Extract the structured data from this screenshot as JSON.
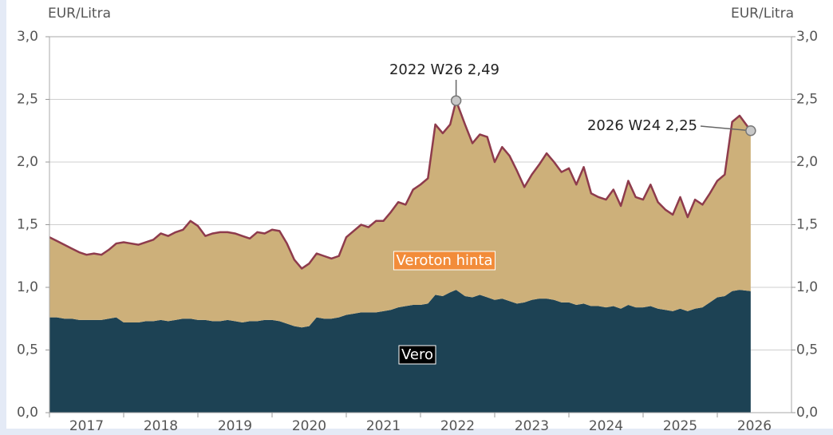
{
  "chart_data": {
    "type": "stacked_area",
    "y_axis_label": "EUR/Litra",
    "y2_axis_label": "EUR/Litra",
    "x": [
      2017.0,
      2017.1,
      2017.2,
      2017.3,
      2017.4,
      2017.5,
      2017.6,
      2017.7,
      2017.8,
      2017.9,
      2018.0,
      2018.1,
      2018.2,
      2018.3,
      2018.4,
      2018.5,
      2018.6,
      2018.7,
      2018.8,
      2018.9,
      2019.0,
      2019.1,
      2019.2,
      2019.3,
      2019.4,
      2019.5,
      2019.6,
      2019.7,
      2019.8,
      2019.9,
      2020.0,
      2020.1,
      2020.2,
      2020.3,
      2020.4,
      2020.5,
      2020.6,
      2020.7,
      2020.8,
      2020.9,
      2021.0,
      2021.1,
      2021.2,
      2021.3,
      2021.4,
      2021.5,
      2021.6,
      2021.7,
      2021.8,
      2021.9,
      2022.0,
      2022.1,
      2022.2,
      2022.3,
      2022.4,
      2022.48,
      2022.6,
      2022.7,
      2022.8,
      2022.9,
      2023.0,
      2023.1,
      2023.2,
      2023.3,
      2023.4,
      2023.5,
      2023.6,
      2023.7,
      2023.8,
      2023.9,
      2024.0,
      2024.1,
      2024.2,
      2024.3,
      2024.4,
      2024.5,
      2024.6,
      2024.7,
      2024.8,
      2024.9,
      2025.0,
      2025.1,
      2025.2,
      2025.3,
      2025.4,
      2025.5,
      2025.6,
      2025.7,
      2025.8,
      2025.9,
      2026.0,
      2026.1,
      2026.2,
      2026.3,
      2026.45
    ],
    "series": [
      {
        "name": "Vero",
        "color": "#1d4254",
        "label_color": "#000000",
        "values": [
          0.76,
          0.76,
          0.75,
          0.75,
          0.74,
          0.74,
          0.74,
          0.74,
          0.75,
          0.76,
          0.72,
          0.72,
          0.72,
          0.73,
          0.73,
          0.74,
          0.73,
          0.74,
          0.75,
          0.75,
          0.74,
          0.74,
          0.73,
          0.73,
          0.74,
          0.73,
          0.72,
          0.73,
          0.73,
          0.74,
          0.74,
          0.73,
          0.71,
          0.69,
          0.68,
          0.69,
          0.76,
          0.75,
          0.75,
          0.76,
          0.78,
          0.79,
          0.8,
          0.8,
          0.8,
          0.81,
          0.82,
          0.84,
          0.85,
          0.86,
          0.86,
          0.87,
          0.94,
          0.93,
          0.96,
          0.98,
          0.93,
          0.92,
          0.94,
          0.92,
          0.9,
          0.91,
          0.89,
          0.87,
          0.88,
          0.9,
          0.91,
          0.91,
          0.9,
          0.88,
          0.88,
          0.86,
          0.87,
          0.85,
          0.85,
          0.84,
          0.85,
          0.83,
          0.86,
          0.84,
          0.84,
          0.85,
          0.83,
          0.82,
          0.81,
          0.83,
          0.81,
          0.83,
          0.84,
          0.88,
          0.92,
          0.93,
          0.97,
          0.98,
          0.97
        ]
      },
      {
        "name": "Veroton hinta",
        "color": "#cdb07a",
        "line_color": "#8e3b4c",
        "label_color": "#f28c3a",
        "values": [
          0.64,
          0.61,
          0.59,
          0.56,
          0.54,
          0.52,
          0.53,
          0.52,
          0.55,
          0.59,
          0.64,
          0.63,
          0.62,
          0.63,
          0.65,
          0.69,
          0.68,
          0.7,
          0.71,
          0.78,
          0.75,
          0.67,
          0.7,
          0.71,
          0.7,
          0.7,
          0.69,
          0.66,
          0.71,
          0.69,
          0.72,
          0.72,
          0.64,
          0.53,
          0.47,
          0.5,
          0.51,
          0.5,
          0.48,
          0.49,
          0.62,
          0.66,
          0.7,
          0.68,
          0.73,
          0.72,
          0.78,
          0.84,
          0.81,
          0.92,
          0.96,
          1.0,
          1.36,
          1.3,
          1.34,
          1.51,
          1.37,
          1.23,
          1.28,
          1.28,
          1.1,
          1.21,
          1.16,
          1.06,
          0.92,
          1.0,
          1.07,
          1.16,
          1.1,
          1.04,
          1.07,
          0.96,
          1.09,
          0.9,
          0.87,
          0.86,
          0.93,
          0.82,
          0.99,
          0.88,
          0.86,
          0.97,
          0.85,
          0.8,
          0.77,
          0.89,
          0.75,
          0.87,
          0.82,
          0.87,
          0.93,
          0.97,
          1.35,
          1.39,
          1.28
        ]
      }
    ],
    "annotations": [
      {
        "label": "2022 W26 2,49",
        "x": 2022.48,
        "y": 2.49
      },
      {
        "label": "2026 W24 2,25",
        "x": 2026.45,
        "y": 2.25
      }
    ],
    "xlim": [
      2017,
      2027
    ],
    "xticks": [
      {
        "value": 2017.5,
        "label": "2017"
      },
      {
        "value": 2018.5,
        "label": "2018"
      },
      {
        "value": 2019.5,
        "label": "2019"
      },
      {
        "value": 2020.5,
        "label": "2020"
      },
      {
        "value": 2021.5,
        "label": "2021"
      },
      {
        "value": 2022.5,
        "label": "2022"
      },
      {
        "value": 2023.5,
        "label": "2023"
      },
      {
        "value": 2024.5,
        "label": "2024"
      },
      {
        "value": 2025.5,
        "label": "2025"
      },
      {
        "value": 2026.5,
        "label": "2026"
      }
    ],
    "ylim": [
      0,
      3
    ],
    "yticks": [
      {
        "value": 0,
        "label": "0,0"
      },
      {
        "value": 0.5,
        "label": "0,5"
      },
      {
        "value": 1,
        "label": "1,0"
      },
      {
        "value": 1.5,
        "label": "1,5"
      },
      {
        "value": 2,
        "label": "2,0"
      },
      {
        "value": 2.5,
        "label": "2,5"
      },
      {
        "value": 3,
        "label": "3,0"
      }
    ],
    "y2lim": [
      0,
      3
    ],
    "y2ticks": [
      {
        "value": 0,
        "label": "0,0"
      },
      {
        "value": 0.5,
        "label": "0,5"
      },
      {
        "value": 1,
        "label": "1,0"
      },
      {
        "value": 1.5,
        "label": "1,5"
      },
      {
        "value": 2,
        "label": "2,0"
      },
      {
        "value": 2.5,
        "label": "2,5"
      },
      {
        "value": 3,
        "label": "3,0"
      }
    ],
    "grid": true
  }
}
